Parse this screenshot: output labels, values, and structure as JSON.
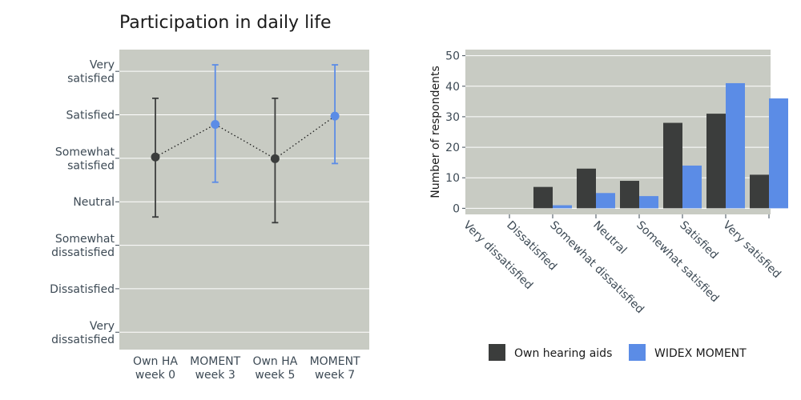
{
  "chart_data": [
    {
      "type": "scatter",
      "title": "Participation in daily life",
      "categories": [
        "Own HA week 0",
        "MOMENT week 3",
        "Own HA week 5",
        "MOMENT week 7"
      ],
      "category_lines": [
        [
          "Own HA",
          "week 0"
        ],
        [
          "MOMENT",
          "week 3"
        ],
        [
          "Own HA",
          "week 5"
        ],
        [
          "MOMENT",
          "week 7"
        ]
      ],
      "y_tick_labels": [
        [
          "Very",
          "dissatisfied"
        ],
        [
          "Dissatisfied"
        ],
        [
          "Somewhat",
          "dissatisfied"
        ],
        [
          "Neutral"
        ],
        [
          "Somewhat",
          "satisfied"
        ],
        [
          "Satisfied"
        ],
        [
          "Very",
          "satisfied"
        ]
      ],
      "ylim": [
        0.6,
        7.5
      ],
      "points": [
        {
          "mean": 5.03,
          "low": 3.65,
          "high": 6.38,
          "group": "Own HA"
        },
        {
          "mean": 5.78,
          "low": 4.45,
          "high": 7.15,
          "group": "MOMENT"
        },
        {
          "mean": 4.99,
          "low": 3.52,
          "high": 6.38,
          "group": "Own HA"
        },
        {
          "mean": 5.97,
          "low": 4.88,
          "high": 7.15,
          "group": "MOMENT"
        }
      ],
      "connector": "dotted",
      "grid": true
    },
    {
      "type": "bar",
      "categories": [
        "Very dissatisfied",
        "Dissatisfied",
        "Somewhat dissatisfied",
        "Neutral",
        "Somewhat satisfied",
        "Satisfied",
        "Very satisfied"
      ],
      "series": [
        {
          "name": "Own hearing aids",
          "values": [
            0,
            7,
            13,
            9,
            28,
            31,
            11
          ]
        },
        {
          "name": "WIDEX MOMENT",
          "values": [
            0,
            1,
            5,
            4,
            14,
            41,
            36
          ]
        }
      ],
      "ylabel": "Number of respondents",
      "ylim": [
        -2,
        52
      ],
      "y_ticks": [
        0,
        10,
        20,
        30,
        40,
        50
      ],
      "legend": "bottom",
      "grid": true
    }
  ],
  "colors": {
    "plot_bg": "#c8cbc3",
    "grid": "#ffffff",
    "own_ha": "#3b3d3c",
    "moment": "#5b8ce6",
    "connector": "#1a1a1a"
  }
}
